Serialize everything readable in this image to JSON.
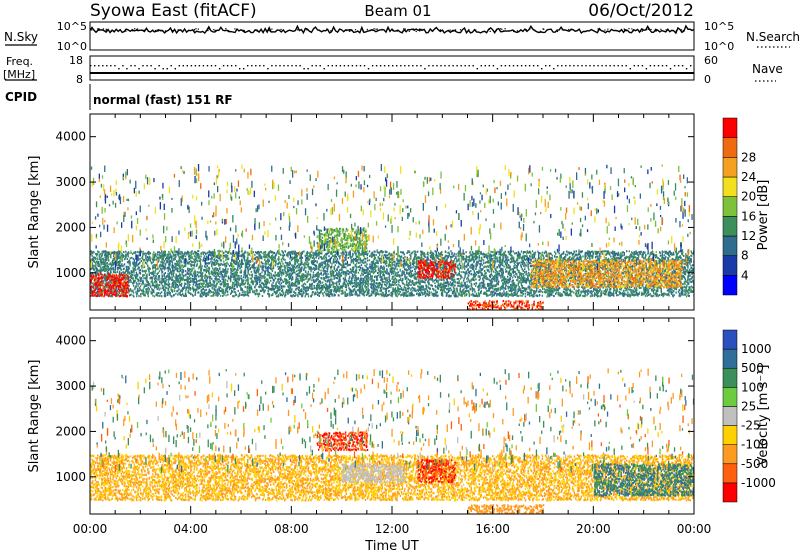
{
  "header": {
    "station": "Syowa East (fitACF)",
    "beam": "Beam 01",
    "date": "06/Oct/2012"
  },
  "noise_panel": {
    "left_label": "N.Sky",
    "right_label": "N.Search",
    "left_ticks": [
      "10^5",
      "10^0"
    ],
    "right_ticks": [
      "10^5",
      "10^0"
    ]
  },
  "freq_panel": {
    "left_label_1": "Freq.",
    "left_label_2": "[MHz]",
    "right_label": "Nave",
    "left_ticks": [
      "18",
      "8"
    ],
    "right_ticks": [
      "60",
      "0"
    ]
  },
  "cpid_panel": {
    "label": "CPID",
    "mode_text": "normal (fast) 151 RF"
  },
  "x_axis": {
    "title": "Time UT",
    "ticks": [
      "00:00",
      "04:00",
      "08:00",
      "12:00",
      "16:00",
      "20:00",
      "00:00"
    ]
  },
  "power_panel": {
    "ylabel": "Slant Range [km]",
    "colorbar_label": "Power [dB]"
  },
  "velocity_panel": {
    "ylabel": "Slant Range [km]",
    "colorbar_label": "Velocity [m s⁻¹]"
  },
  "chart_data": [
    {
      "type": "heatmap",
      "title": "Power",
      "xlabel": "Time UT",
      "ylabel": "Slant Range [km]",
      "xlim": [
        "00:00",
        "24:00"
      ],
      "ylim": [
        180,
        4500
      ],
      "y_ticks": [
        1000,
        2000,
        3000,
        4000
      ],
      "colorbar": {
        "label": "Power [dB]",
        "ticks": [
          4,
          8,
          12,
          16,
          20,
          24,
          28
        ],
        "range": [
          0,
          30
        ],
        "colors": [
          "#0000ff",
          "#1a3aa8",
          "#2f6d8f",
          "#3a8f5a",
          "#7dc23a",
          "#f2e01e",
          "#f5a020",
          "#f06a10",
          "#ff0000"
        ]
      },
      "regions": [
        {
          "t_start": 0.0,
          "t_end": 24.0,
          "range_start": 500,
          "range_end": 1500,
          "value": 10
        },
        {
          "t_start": 0.0,
          "t_end": 1.5,
          "range_start": 500,
          "range_end": 1000,
          "value": 28
        },
        {
          "t_start": 9.0,
          "t_end": 11.0,
          "range_start": 1500,
          "range_end": 2000,
          "value": 14
        },
        {
          "t_start": 13.0,
          "t_end": 14.5,
          "range_start": 900,
          "range_end": 1300,
          "value": 28
        },
        {
          "t_start": 15.0,
          "t_end": 18.0,
          "range_start": 200,
          "range_end": 400,
          "value": 26
        },
        {
          "t_start": 17.5,
          "t_end": 23.5,
          "range_start": 700,
          "range_end": 1300,
          "value": 22
        }
      ]
    },
    {
      "type": "heatmap",
      "title": "Velocity",
      "xlabel": "Time UT",
      "ylabel": "Slant Range [km]",
      "xlim": [
        "00:00",
        "24:00"
      ],
      "ylim": [
        180,
        4500
      ],
      "y_ticks": [
        1000,
        2000,
        3000,
        4000
      ],
      "colorbar": {
        "label": "Velocity [m s⁻¹]",
        "ticks": [
          1000,
          500,
          100,
          25,
          -25,
          -100,
          -500,
          -1000
        ],
        "colors": [
          "#2a4fbf",
          "#2f6f9a",
          "#3a8f5a",
          "#6ccc40",
          "#c0c0c0",
          "#ffd000",
          "#ff9a20",
          "#ff6010",
          "#ff0000"
        ]
      },
      "regions": [
        {
          "t_start": 0.0,
          "t_end": 24.0,
          "range_start": 500,
          "range_end": 1500,
          "value": -100
        },
        {
          "t_start": 9.0,
          "t_end": 11.0,
          "range_start": 1600,
          "range_end": 2000,
          "value": -1000
        },
        {
          "t_start": 10.0,
          "t_end": 12.5,
          "range_start": 900,
          "range_end": 1300,
          "value": 0
        },
        {
          "t_start": 13.0,
          "t_end": 14.5,
          "range_start": 900,
          "range_end": 1400,
          "value": -1000
        },
        {
          "t_start": 15.0,
          "t_end": 18.0,
          "range_start": 200,
          "range_end": 400,
          "value": -200
        },
        {
          "t_start": 20.0,
          "t_end": 24.0,
          "range_start": 600,
          "range_end": 1300,
          "value": 500
        }
      ]
    }
  ]
}
